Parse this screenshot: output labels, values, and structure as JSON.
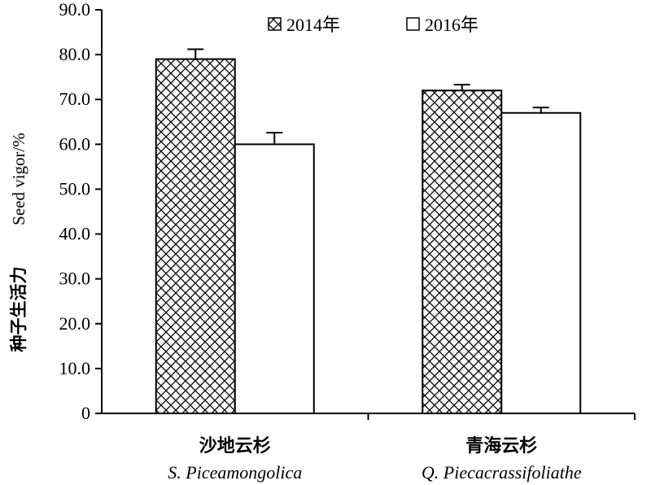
{
  "chart_data": {
    "type": "bar",
    "ylabel_cn": "种子生活力",
    "ylabel_en": "Seed vigor/%",
    "ylim": [
      0,
      90
    ],
    "yticks": [
      "0",
      "10.0",
      "20.0",
      "30.0",
      "40.0",
      "50.0",
      "60.0",
      "70.0",
      "80.0",
      "90.0"
    ],
    "categories": [
      {
        "cn": "沙地云杉",
        "en": "S. Piceamongolica"
      },
      {
        "cn": "青海云杉",
        "en": "Q. Piecacrassifoliathe"
      }
    ],
    "series": [
      {
        "name": "2014年",
        "pattern": "crosshatch",
        "values": [
          79.0,
          72.0
        ],
        "errors": [
          2.2,
          1.3
        ]
      },
      {
        "name": "2016年",
        "pattern": "none",
        "values": [
          60.0,
          67.0
        ],
        "errors": [
          2.6,
          1.2
        ]
      }
    ],
    "legend_position": "top-center",
    "grid": false,
    "colors": {
      "bar_fill": "#ffffff",
      "stroke": "#000000"
    }
  }
}
